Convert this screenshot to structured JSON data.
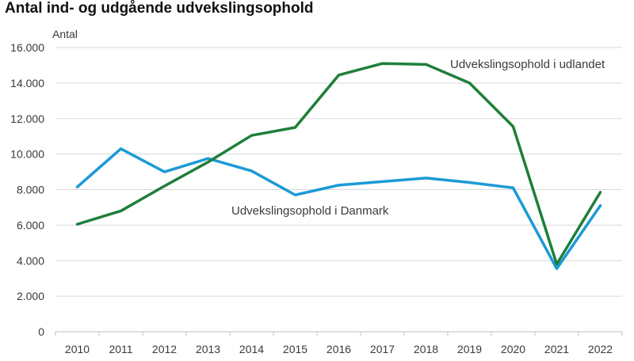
{
  "chart_data": {
    "type": "line",
    "title": "Antal ind- og udgående udvekslingsophold",
    "ylabel": "Antal",
    "xlabel": "",
    "categories": [
      "2010",
      "2011",
      "2012",
      "2013",
      "2014",
      "2015",
      "2016",
      "2017",
      "2018",
      "2019",
      "2020",
      "2021",
      "2022"
    ],
    "ylim": [
      0,
      16000
    ],
    "yticks": [
      0,
      2000,
      4000,
      6000,
      8000,
      10000,
      12000,
      14000,
      16000
    ],
    "ytick_labels": [
      "0",
      "2.000",
      "4.000",
      "6.000",
      "8.000",
      "10.000",
      "12.000",
      "14.000",
      "16.000"
    ],
    "grid": true,
    "series": [
      {
        "name": "Udvekslingsophold i Danmark",
        "color": "#1b9ad6",
        "values": [
          8150,
          10300,
          9000,
          9750,
          9050,
          7700,
          8250,
          8450,
          8650,
          8400,
          8100,
          3550,
          7100
        ]
      },
      {
        "name": "Udvekslingsophold i udlandet",
        "color": "#1e7f3a",
        "values": [
          6050,
          6800,
          8200,
          9550,
          11050,
          11500,
          14450,
          15100,
          15050,
          14000,
          11550,
          3800,
          7850
        ]
      }
    ]
  }
}
